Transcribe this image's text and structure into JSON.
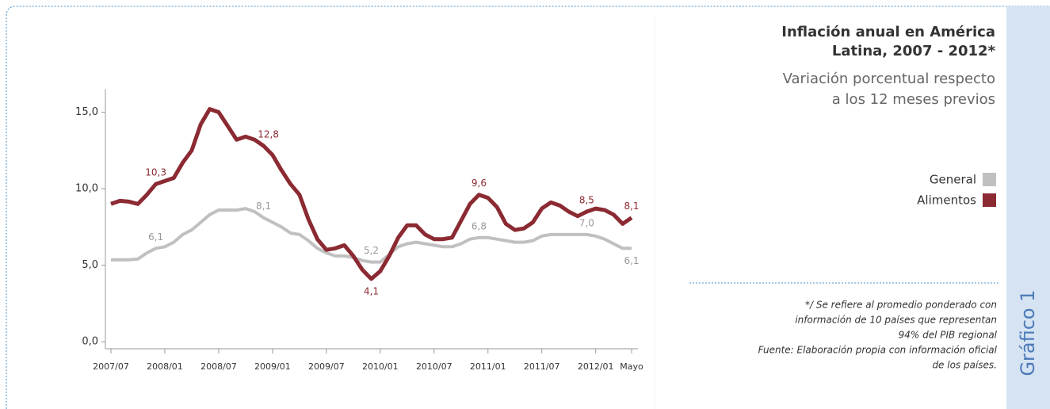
{
  "chart_data": {
    "type": "line",
    "title_lines": [
      "Inflación anual en América",
      "Latina, 2007 - 2012*"
    ],
    "subtitle_lines": [
      "Variación porcentual respecto",
      "a los 12 meses previos"
    ],
    "notes": [
      "*/ Se refiere al promedio ponderado con",
      "información de 10 países que representan",
      "94% del PIB regional",
      "Fuente: Elaboración propia con información oficial",
      "de los países."
    ],
    "side_label": "Gráfico 1",
    "categories": [
      "2007/07",
      null,
      null,
      null,
      null,
      null,
      "2008/01",
      null,
      null,
      null,
      null,
      null,
      "2008/07",
      null,
      null,
      null,
      null,
      null,
      "2009/01",
      null,
      null,
      null,
      null,
      null,
      "2009/07",
      null,
      null,
      null,
      null,
      null,
      "2010/01",
      null,
      null,
      null,
      null,
      null,
      "2010/07",
      null,
      null,
      null,
      null,
      null,
      "2011/01",
      null,
      null,
      null,
      null,
      null,
      "2011/07",
      null,
      null,
      null,
      null,
      null,
      "2012/01",
      null,
      null,
      null,
      "Mayo"
    ],
    "ylim": [
      0,
      16.5
    ],
    "yticks": [
      {
        "value": 0,
        "label": "0,0"
      },
      {
        "value": 5,
        "label": "5,0"
      },
      {
        "value": 10,
        "label": "10,0"
      },
      {
        "value": 15,
        "label": "15,0"
      }
    ],
    "series": [
      {
        "name": "General",
        "color": "#c0c0c0",
        "values": [
          5.35,
          5.35,
          5.35,
          5.4,
          5.8,
          6.1,
          6.2,
          6.5,
          7.0,
          7.3,
          7.8,
          8.3,
          8.6,
          8.6,
          8.6,
          8.7,
          8.5,
          8.1,
          7.8,
          7.5,
          7.1,
          7.0,
          6.6,
          6.1,
          5.8,
          5.6,
          5.6,
          5.5,
          5.3,
          5.2,
          5.2,
          5.7,
          6.2,
          6.4,
          6.5,
          6.4,
          6.3,
          6.2,
          6.2,
          6.4,
          6.7,
          6.8,
          6.8,
          6.7,
          6.6,
          6.5,
          6.5,
          6.6,
          6.9,
          7.0,
          7.0,
          7.0,
          7.0,
          7.0,
          6.9,
          6.7,
          6.4,
          6.1,
          6.1
        ],
        "value_labels": [
          null,
          null,
          null,
          null,
          null,
          "6,1",
          null,
          null,
          null,
          null,
          null,
          null,
          null,
          null,
          null,
          null,
          null,
          "8,1",
          null,
          null,
          null,
          null,
          null,
          null,
          null,
          null,
          null,
          null,
          null,
          "5,2",
          null,
          null,
          null,
          null,
          null,
          null,
          null,
          null,
          null,
          null,
          null,
          "6,8",
          null,
          null,
          null,
          null,
          null,
          null,
          null,
          null,
          null,
          null,
          null,
          "7,0",
          null,
          null,
          null,
          null,
          "6,1"
        ]
      },
      {
        "name": "Alimentos",
        "color": "#8b2a32",
        "values": [
          9.0,
          9.2,
          9.15,
          9.0,
          9.6,
          10.3,
          10.5,
          10.7,
          11.7,
          12.5,
          14.2,
          15.2,
          15.0,
          14.1,
          13.2,
          13.4,
          13.2,
          12.8,
          12.2,
          11.2,
          10.3,
          9.6,
          8.0,
          6.7,
          6.0,
          6.1,
          6.3,
          5.6,
          4.7,
          4.1,
          4.6,
          5.6,
          6.8,
          7.6,
          7.6,
          7.0,
          6.7,
          6.7,
          6.8,
          7.9,
          9.0,
          9.6,
          9.4,
          8.8,
          7.7,
          7.3,
          7.4,
          7.8,
          8.7,
          9.1,
          8.9,
          8.5,
          8.2,
          8.5,
          8.7,
          8.6,
          8.3,
          7.7,
          8.1
        ],
        "value_labels": [
          null,
          null,
          null,
          null,
          null,
          "10,3",
          null,
          null,
          null,
          null,
          null,
          null,
          null,
          null,
          null,
          null,
          null,
          "12,8",
          null,
          null,
          null,
          null,
          null,
          null,
          null,
          null,
          null,
          null,
          null,
          "4,1",
          null,
          null,
          null,
          null,
          null,
          null,
          null,
          null,
          null,
          null,
          null,
          "9,6",
          null,
          null,
          null,
          null,
          null,
          null,
          null,
          null,
          null,
          null,
          null,
          "8,5",
          null,
          null,
          null,
          null,
          "8,1"
        ]
      }
    ]
  }
}
